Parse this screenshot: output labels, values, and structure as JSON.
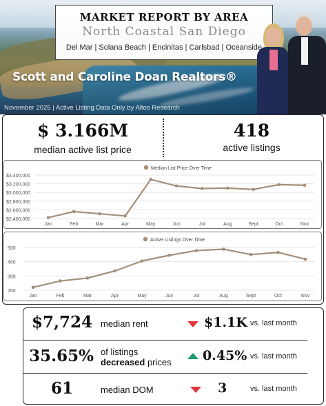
{
  "header": {
    "title": "MARKET REPORT BY AREA",
    "area": "North Coastal San Diego",
    "cities": "Del Mar | Solana Beach | Encinitas | Carlsbad | Oceanside",
    "realtors": "Scott and Caroline Doan Realtors®",
    "source": "November 2025 | Active Listing Data Only by Altos Research"
  },
  "stats": {
    "median_list_price": "$ 3.166M",
    "median_list_price_label": "median active list price",
    "active_listings": "418",
    "active_listings_label": "active listings"
  },
  "chart_data": [
    {
      "type": "line",
      "title": "Median List Price Over Time",
      "categories": [
        "Jan",
        "Feb",
        "Mar",
        "Apr",
        "May",
        "Jun",
        "Jul",
        "Aug",
        "Sept",
        "Oct",
        "Nov"
      ],
      "series": [
        {
          "name": "Median List Price Over Time",
          "values": [
            2420000,
            2560000,
            2510000,
            2460000,
            3300000,
            3150000,
            3090000,
            3100000,
            3070000,
            3180000,
            3166000
          ]
        }
      ],
      "y_ticks": [
        "$2,400,000",
        "$2,600,000",
        "$2,800,000",
        "$3,000,000",
        "$3,200,000",
        "$3,400,000"
      ],
      "ylim": [
        2400000,
        3400000
      ],
      "legend": "top-center",
      "color": "#a38f7a"
    },
    {
      "type": "line",
      "title": "Active Listings Over Time",
      "categories": [
        "Jan",
        "Feb",
        "Mar",
        "Apr",
        "May",
        "Jun",
        "Jul",
        "Aug",
        "Sept",
        "Oct",
        "Nov"
      ],
      "series": [
        {
          "name": "Active Listings Over Time",
          "values": [
            220,
            265,
            285,
            335,
            405,
            445,
            478,
            488,
            450,
            465,
            418
          ]
        }
      ],
      "y_ticks": [
        "200",
        "300",
        "400",
        "500"
      ],
      "ylim": [
        200,
        500
      ],
      "legend": "top-center",
      "color": "#a38f7a"
    }
  ],
  "metrics": [
    {
      "value": "$7,724",
      "label": "median rent",
      "label_bold": "",
      "label_suffix": "",
      "direction": "down",
      "change": "$1.1K",
      "compare": "vs. last month"
    },
    {
      "value": "35.65%",
      "label": "of listings",
      "label_bold": "decreased",
      "label_suffix": " prices",
      "direction": "up",
      "change": "0.45%",
      "compare": "vs. last month"
    },
    {
      "value": "61",
      "label": "median DOM",
      "label_bold": "",
      "label_suffix": "",
      "direction": "down",
      "change": "3",
      "compare": "vs. last month"
    }
  ],
  "colors": {
    "down": "#e0393b",
    "up": "#1f9a6b",
    "line": "#a38f7a"
  }
}
